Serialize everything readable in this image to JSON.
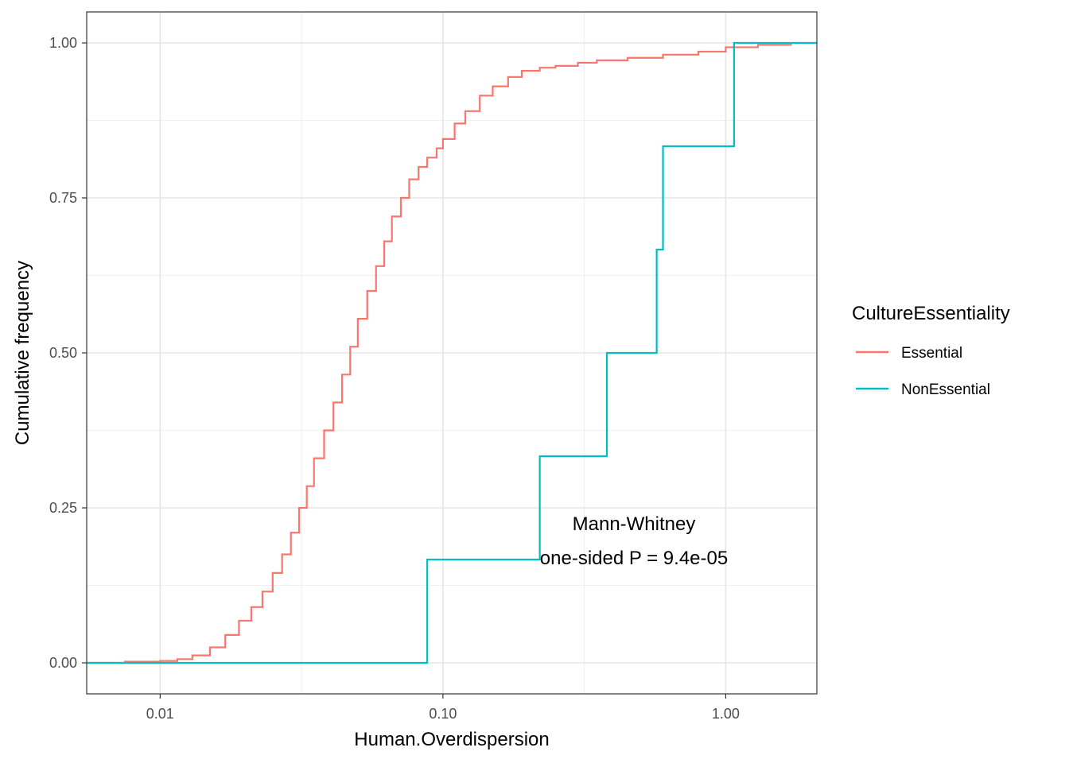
{
  "chart_data": {
    "type": "line",
    "subtype": "empirical-cdf-step",
    "xlabel": "Human.Overdispersion",
    "ylabel": "Cumulative frequency",
    "x_scale": "log10",
    "xlim": [
      0.0055,
      2.1
    ],
    "ylim": [
      -0.05,
      1.05
    ],
    "x_ticks": [
      0.01,
      0.1,
      1.0
    ],
    "x_tick_labels": [
      "0.01",
      "0.10",
      "1.00"
    ],
    "y_ticks": [
      0,
      0.25,
      0.5,
      0.75,
      1.0
    ],
    "y_tick_labels": [
      "0.00",
      "0.25",
      "0.50",
      "0.75",
      "1.00"
    ],
    "grid": true,
    "legend": {
      "title": "CultureEssentiality",
      "position": "right"
    },
    "series": [
      {
        "name": "Essential",
        "color": "#F8766D",
        "x": [
          0.0055,
          0.0075,
          0.01,
          0.0115,
          0.013,
          0.015,
          0.017,
          0.019,
          0.021,
          0.023,
          0.025,
          0.027,
          0.029,
          0.031,
          0.033,
          0.035,
          0.038,
          0.041,
          0.044,
          0.047,
          0.05,
          0.054,
          0.058,
          0.062,
          0.066,
          0.071,
          0.076,
          0.082,
          0.088,
          0.095,
          0.1,
          0.11,
          0.12,
          0.135,
          0.15,
          0.17,
          0.19,
          0.22,
          0.25,
          0.3,
          0.35,
          0.45,
          0.6,
          0.8,
          1.0,
          1.3,
          1.7
        ],
        "y": [
          0.0,
          0.002,
          0.003,
          0.006,
          0.012,
          0.025,
          0.045,
          0.068,
          0.09,
          0.115,
          0.145,
          0.175,
          0.21,
          0.25,
          0.285,
          0.33,
          0.375,
          0.42,
          0.465,
          0.51,
          0.555,
          0.6,
          0.64,
          0.68,
          0.72,
          0.75,
          0.78,
          0.8,
          0.815,
          0.83,
          0.845,
          0.87,
          0.89,
          0.915,
          0.93,
          0.945,
          0.955,
          0.96,
          0.963,
          0.968,
          0.972,
          0.976,
          0.981,
          0.986,
          0.993,
          0.997,
          1.0
        ]
      },
      {
        "name": "NonEssential",
        "color": "#00BFC4",
        "x": [
          0.0055,
          0.088,
          0.22,
          0.38,
          0.57,
          0.6,
          1.07,
          2.1
        ],
        "y": [
          0.0,
          0.1667,
          0.3333,
          0.5,
          0.6667,
          0.8333,
          1.0,
          1.0
        ]
      }
    ],
    "annotations": [
      "Mann-Whitney",
      "one-sided P = 9.4e-05"
    ]
  }
}
